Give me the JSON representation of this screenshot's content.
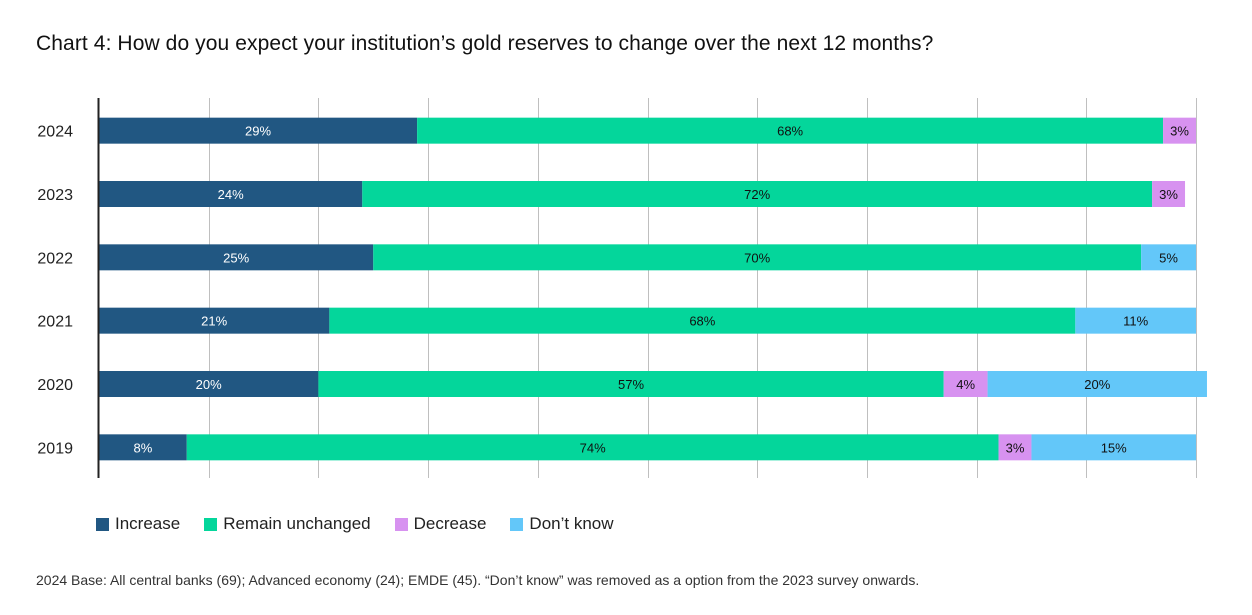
{
  "title": "Chart 4: How do you expect your institution’s gold reserves to change over the next 12 months?",
  "footnote": "2024 Base: All central banks (69); Advanced economy (24); EMDE (45). “Don’t know” was removed as a option from the 2023 survey onwards.",
  "colors": {
    "increase": "#215782",
    "remain": "#04d69b",
    "decrease": "#d792f0",
    "dontknow": "#63c7f9",
    "grid": "#bfbfbf",
    "axis": "#222222"
  },
  "legend": [
    {
      "name": "Increase",
      "color_key": "increase"
    },
    {
      "name": "Remain unchanged",
      "color_key": "remain"
    },
    {
      "name": "Decrease",
      "color_key": "decrease"
    },
    {
      "name": "Don’t know",
      "color_key": "dontknow"
    }
  ],
  "chart_data": {
    "type": "bar",
    "orientation": "horizontal",
    "stacked": true,
    "title": "Chart 4: How do you expect your institution’s gold reserves to change over the next 12 months?",
    "categories": [
      "2024",
      "2023",
      "2022",
      "2021",
      "2020",
      "2019"
    ],
    "series": [
      {
        "name": "Increase",
        "values": [
          29,
          24,
          25,
          21,
          20,
          8
        ],
        "labels": [
          "29%",
          "24%",
          "25%",
          "21%",
          "20%",
          "8%"
        ]
      },
      {
        "name": "Remain unchanged",
        "values": [
          68,
          72,
          70,
          68,
          57,
          74
        ],
        "labels": [
          "68%",
          "72%",
          "70%",
          "68%",
          "57%",
          "74%"
        ]
      },
      {
        "name": "Decrease",
        "values": [
          3,
          3,
          0,
          0,
          4,
          3
        ],
        "labels": [
          "3%",
          "3%",
          "",
          "",
          "4%",
          "3%"
        ]
      },
      {
        "name": "Don’t know",
        "values": [
          0,
          0,
          5,
          11,
          20,
          15
        ],
        "labels": [
          "",
          "",
          "5%",
          "11%",
          "20%",
          "15%"
        ]
      }
    ],
    "xlim": [
      0,
      100
    ],
    "grid": true,
    "legend_position": "bottom-left"
  }
}
